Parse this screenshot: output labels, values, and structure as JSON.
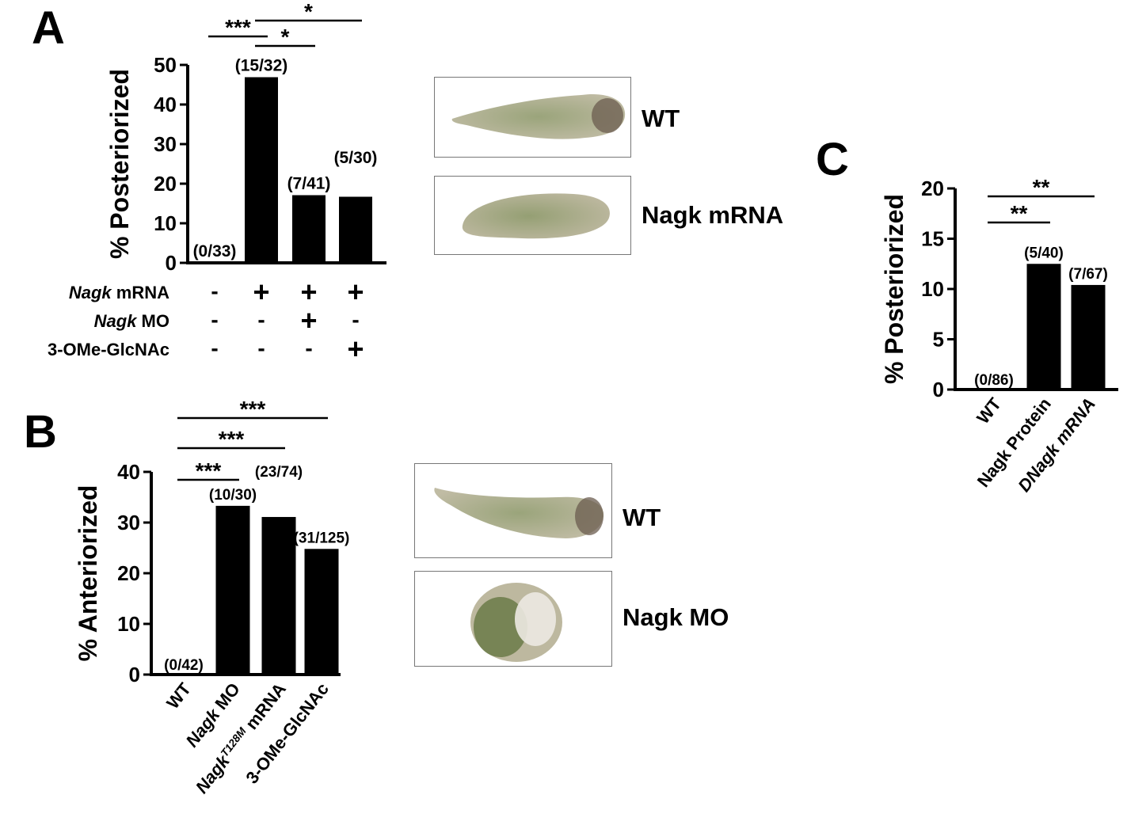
{
  "panels": {
    "A": {
      "letter": "A"
    },
    "B": {
      "letter": "B"
    },
    "C": {
      "letter": "C"
    }
  },
  "photos": {
    "A_wt_label": "WT",
    "A_mut_label": "Nagk mRNA",
    "B_wt_label": "WT",
    "B_mut_label": "Nagk MO"
  },
  "colors": {
    "bar": "#000000",
    "embryo_body": "#b9b49a",
    "embryo_yolk": "#8f9a6c",
    "embryo_head": "#6b5c4f"
  },
  "chart_data": [
    {
      "id": "A",
      "type": "bar",
      "ylabel": "% Posteriorized",
      "ylim": [
        0,
        50
      ],
      "yticks": [
        0,
        10,
        20,
        30,
        40,
        50
      ],
      "values": [
        0,
        46.9,
        17.1,
        16.7
      ],
      "bar_labels": [
        "(0/33)",
        "(15/32)",
        "(7/41)",
        "(5/30)"
      ],
      "significance": [
        {
          "from": 0,
          "to": 1,
          "label": "***"
        },
        {
          "from": 1,
          "to": 2,
          "label": "*"
        },
        {
          "from": 1,
          "to": 3,
          "label": "*"
        }
      ],
      "condition_rows": [
        {
          "label_italic": "Nagk",
          "label_rest": " mRNA",
          "signs": [
            "-",
            "+",
            "+",
            "+"
          ]
        },
        {
          "label_italic": "Nagk",
          "label_rest": " MO",
          "signs": [
            "-",
            "-",
            "+",
            "-"
          ]
        },
        {
          "label_italic": "",
          "label_rest": "3-OMe-GlcNAc",
          "signs": [
            "-",
            "-",
            "-",
            "+"
          ]
        }
      ]
    },
    {
      "id": "B",
      "type": "bar",
      "ylabel": "% Anteriorized",
      "ylim": [
        0,
        40
      ],
      "yticks": [
        0,
        10,
        20,
        30,
        40
      ],
      "values": [
        0,
        33.3,
        31.1,
        24.8
      ],
      "bar_labels": [
        "(0/42)",
        "(10/30)",
        "(23/74)",
        "(31/125)"
      ],
      "categories": [
        {
          "parts": [
            {
              "t": "WT",
              "i": false
            }
          ]
        },
        {
          "parts": [
            {
              "t": "Nagk",
              "i": true
            },
            {
              "t": " MO",
              "i": false
            }
          ]
        },
        {
          "parts": [
            {
              "t": "Nagk",
              "i": true
            },
            {
              "t": "T128M",
              "i": true,
              "sup": true
            },
            {
              "t": " mRNA",
              "i": false
            }
          ]
        },
        {
          "parts": [
            {
              "t": "3-OMe-GlcNAc",
              "i": false
            }
          ]
        }
      ],
      "significance": [
        {
          "from": 0,
          "to": 1,
          "label": "***"
        },
        {
          "from": 0,
          "to": 2,
          "label": "***"
        },
        {
          "from": 0,
          "to": 3,
          "label": "***"
        }
      ]
    },
    {
      "id": "C",
      "type": "bar",
      "ylabel": "% Posteriorized",
      "ylim": [
        0,
        20
      ],
      "yticks": [
        0,
        5,
        10,
        15,
        20
      ],
      "values": [
        0,
        12.5,
        10.4
      ],
      "bar_labels": [
        "(0/86)",
        "(5/40)",
        "(7/67)"
      ],
      "categories": [
        {
          "parts": [
            {
              "t": "WT",
              "i": false
            }
          ]
        },
        {
          "parts": [
            {
              "t": "Nagk Protein",
              "i": false
            }
          ]
        },
        {
          "parts": [
            {
              "t": "DNagk mRNA",
              "i": true
            }
          ]
        }
      ],
      "significance": [
        {
          "from": 0,
          "to": 1,
          "label": "**"
        },
        {
          "from": 0,
          "to": 2,
          "label": "**"
        }
      ]
    }
  ]
}
